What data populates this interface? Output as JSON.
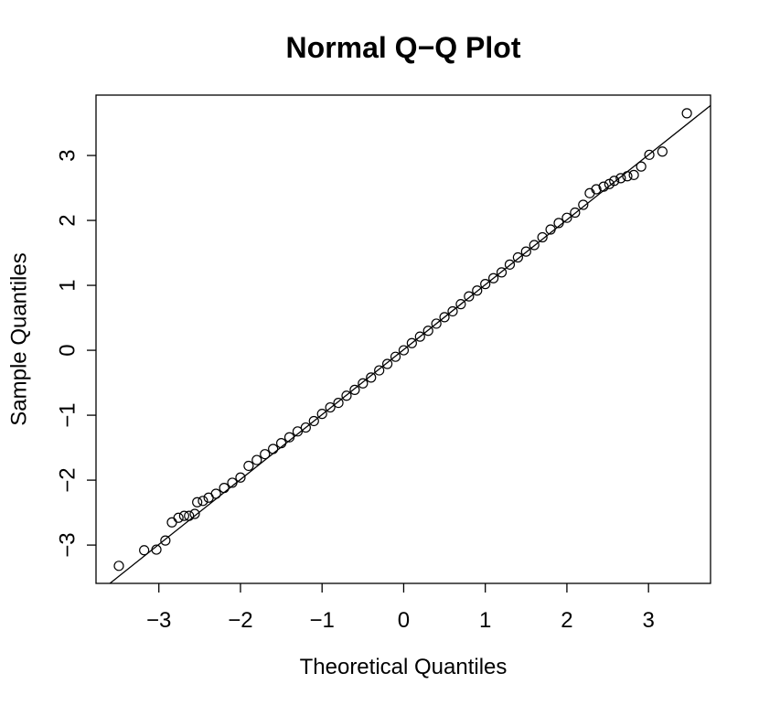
{
  "chart_data": {
    "type": "scatter",
    "title": "Normal Q−Q Plot",
    "x_label": "Theoretical Quantiles",
    "y_label": "Sample Quantiles",
    "xlim": [
      -3.77,
      3.76
    ],
    "ylim": [
      -3.59,
      3.93
    ],
    "xticks": [
      {
        "value": -3,
        "label": "−3"
      },
      {
        "value": -2,
        "label": "−2"
      },
      {
        "value": -1,
        "label": "−1"
      },
      0,
      1,
      2,
      3
    ],
    "yticks": [
      {
        "value": -3,
        "label": "−3"
      },
      {
        "value": -2,
        "label": "−2"
      },
      {
        "value": -1,
        "label": "−1"
      },
      0,
      1,
      2,
      3
    ],
    "color": "#000000",
    "qq_line": {
      "intercept": 0.01,
      "slope": 1.0
    },
    "x": [
      -3.49,
      -3.18,
      -3.03,
      -2.92,
      -2.84,
      -2.76,
      -2.69,
      -2.63,
      -2.56,
      -2.53,
      -2.46,
      -2.39,
      -2.3,
      -2.2,
      -2.1,
      -2.0,
      -1.9,
      -1.8,
      -1.7,
      -1.6,
      -1.5,
      -1.4,
      -1.3,
      -1.2,
      -1.1,
      -1.0,
      -0.9,
      -0.8,
      -0.7,
      -0.6,
      -0.5,
      -0.4,
      -0.3,
      -0.2,
      -0.1,
      0.0,
      0.1,
      0.2,
      0.3,
      0.4,
      0.5,
      0.6,
      0.7,
      0.8,
      0.9,
      1.0,
      1.1,
      1.2,
      1.3,
      1.4,
      1.5,
      1.6,
      1.7,
      1.8,
      1.9,
      2.0,
      2.1,
      2.2,
      2.28,
      2.36,
      2.45,
      2.52,
      2.58,
      2.66,
      2.74,
      2.82,
      2.91,
      3.01,
      3.17,
      3.47
    ],
    "values": [
      -3.32,
      -3.08,
      -3.07,
      -2.93,
      -2.65,
      -2.58,
      -2.55,
      -2.55,
      -2.52,
      -2.34,
      -2.32,
      -2.27,
      -2.21,
      -2.12,
      -2.04,
      -1.96,
      -1.78,
      -1.69,
      -1.6,
      -1.52,
      -1.43,
      -1.34,
      -1.25,
      -1.19,
      -1.09,
      -0.98,
      -0.88,
      -0.81,
      -0.7,
      -0.61,
      -0.51,
      -0.42,
      -0.31,
      -0.21,
      -0.1,
      0.0,
      0.11,
      0.21,
      0.3,
      0.41,
      0.51,
      0.6,
      0.71,
      0.83,
      0.92,
      1.02,
      1.11,
      1.2,
      1.32,
      1.43,
      1.52,
      1.62,
      1.74,
      1.86,
      1.96,
      2.04,
      2.12,
      2.24,
      2.42,
      2.48,
      2.52,
      2.56,
      2.61,
      2.65,
      2.68,
      2.7,
      2.83,
      3.01,
      3.06,
      3.65
    ]
  }
}
